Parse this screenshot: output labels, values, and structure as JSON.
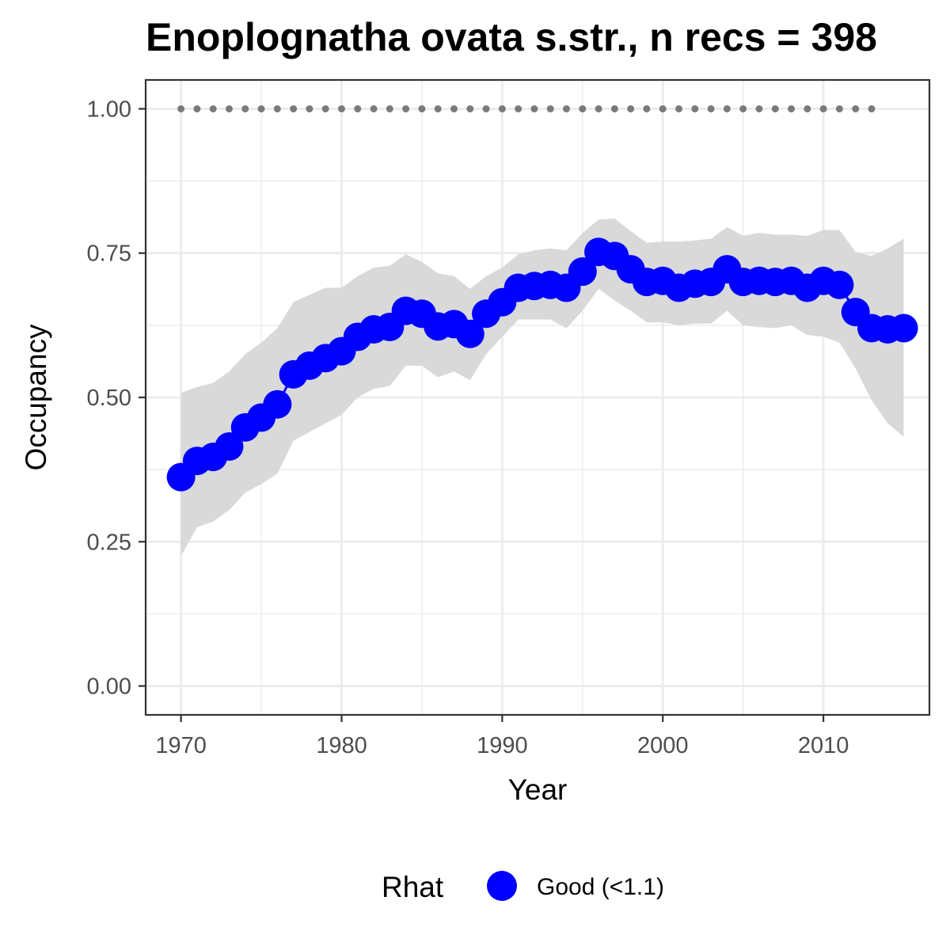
{
  "chart_data": {
    "type": "line",
    "title": "Enoplognatha ovata s.str., n recs = 398",
    "xlabel": "Year",
    "ylabel": "Occupancy",
    "xlim": [
      1967.8,
      2016.6
    ],
    "ylim": [
      -0.05,
      1.05
    ],
    "x_ticks": [
      1970,
      1980,
      1990,
      2000,
      2010
    ],
    "x_tick_labels": [
      "1970",
      "1980",
      "1990",
      "2000",
      "2010"
    ],
    "y_ticks": [
      0,
      0.25,
      0.5,
      0.75,
      1.0
    ],
    "y_tick_labels": [
      "0.00",
      "0.25",
      "0.50",
      "0.75",
      "1.00"
    ],
    "grid": true,
    "legend": {
      "title": "Rhat",
      "position": "bottom",
      "entries": [
        {
          "label": "Good (<1.1)",
          "color": "#0000ff"
        }
      ]
    },
    "colors": {
      "series": "#0000ff",
      "ribbon": "#d9d9d9",
      "reference": "#7a7a7a",
      "panel_border": "#333333",
      "grid": "#ebebeb"
    },
    "series": [
      {
        "name": "Good (<1.1)",
        "x": [
          1970,
          1971,
          1972,
          1973,
          1974,
          1975,
          1976,
          1977,
          1978,
          1979,
          1980,
          1981,
          1982,
          1983,
          1984,
          1985,
          1986,
          1987,
          1988,
          1989,
          1990,
          1991,
          1992,
          1993,
          1994,
          1995,
          1996,
          1997,
          1998,
          1999,
          2000,
          2001,
          2002,
          2003,
          2004,
          2005,
          2006,
          2007,
          2008,
          2009,
          2010,
          2011,
          2012,
          2013,
          2014,
          2015
        ],
        "y": [
          0.362,
          0.39,
          0.397,
          0.415,
          0.448,
          0.465,
          0.488,
          0.54,
          0.555,
          0.568,
          0.58,
          0.605,
          0.618,
          0.622,
          0.65,
          0.645,
          0.623,
          0.627,
          0.61,
          0.645,
          0.665,
          0.69,
          0.693,
          0.695,
          0.69,
          0.718,
          0.752,
          0.745,
          0.722,
          0.7,
          0.702,
          0.69,
          0.697,
          0.7,
          0.722,
          0.7,
          0.702,
          0.7,
          0.702,
          0.69,
          0.702,
          0.695,
          0.648,
          0.62,
          0.618,
          0.62
        ],
        "lower": [
          0.225,
          0.275,
          0.285,
          0.305,
          0.335,
          0.35,
          0.368,
          0.425,
          0.44,
          0.455,
          0.47,
          0.5,
          0.515,
          0.52,
          0.555,
          0.555,
          0.535,
          0.545,
          0.53,
          0.575,
          0.605,
          0.635,
          0.635,
          0.635,
          0.62,
          0.65,
          0.688,
          0.668,
          0.65,
          0.63,
          0.63,
          0.625,
          0.628,
          0.628,
          0.65,
          0.625,
          0.622,
          0.62,
          0.625,
          0.608,
          0.605,
          0.595,
          0.55,
          0.495,
          0.455,
          0.432
        ],
        "upper": [
          0.508,
          0.518,
          0.525,
          0.545,
          0.575,
          0.595,
          0.62,
          0.665,
          0.678,
          0.69,
          0.69,
          0.71,
          0.725,
          0.728,
          0.748,
          0.735,
          0.715,
          0.71,
          0.688,
          0.71,
          0.725,
          0.748,
          0.755,
          0.758,
          0.755,
          0.785,
          0.808,
          0.81,
          0.788,
          0.768,
          0.77,
          0.77,
          0.772,
          0.775,
          0.795,
          0.78,
          0.785,
          0.782,
          0.782,
          0.78,
          0.79,
          0.79,
          0.752,
          0.745,
          0.758,
          0.775
        ]
      }
    ],
    "reference_points": {
      "x": [
        1970,
        1971,
        1972,
        1973,
        1974,
        1975,
        1976,
        1977,
        1978,
        1979,
        1980,
        1981,
        1982,
        1983,
        1984,
        1985,
        1986,
        1987,
        1988,
        1989,
        1990,
        1991,
        1992,
        1993,
        1994,
        1995,
        1996,
        1997,
        1998,
        1999,
        2000,
        2001,
        2002,
        2003,
        2004,
        2005,
        2006,
        2007,
        2008,
        2009,
        2010,
        2011,
        2012,
        2013
      ],
      "y": 1.0
    }
  }
}
